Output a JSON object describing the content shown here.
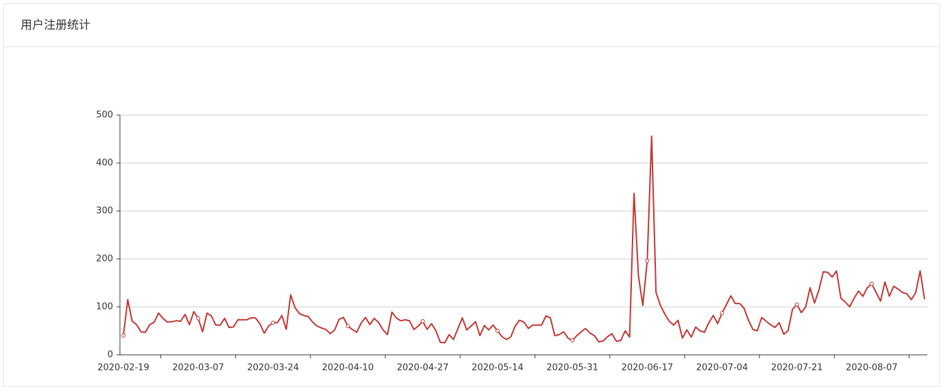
{
  "header": {
    "title": "用户注册统计"
  },
  "chart_data": {
    "type": "line",
    "color": "#c23531",
    "grid": true,
    "categories": [
      "2020-02-19",
      null,
      null,
      null,
      null,
      null,
      null,
      null,
      null,
      null,
      null,
      null,
      null,
      null,
      null,
      null,
      null,
      "2020-03-07",
      null,
      null,
      null,
      null,
      null,
      null,
      null,
      null,
      null,
      null,
      null,
      null,
      null,
      null,
      null,
      null,
      "2020-03-24",
      null,
      null,
      null,
      null,
      null,
      null,
      null,
      null,
      null,
      null,
      null,
      null,
      null,
      null,
      null,
      null,
      "2020-04-10",
      null,
      null,
      null,
      null,
      null,
      null,
      null,
      null,
      null,
      null,
      null,
      null,
      null,
      null,
      null,
      null,
      "2020-04-27",
      null,
      null,
      null,
      null,
      null,
      null,
      null,
      null,
      null,
      null,
      null,
      null,
      null,
      null,
      null,
      null,
      "2020-05-14",
      null,
      null,
      null,
      null,
      null,
      null,
      null,
      null,
      null,
      null,
      null,
      null,
      null,
      null,
      null,
      null,
      "2020-05-31",
      null,
      null,
      null,
      null,
      null,
      null,
      null,
      null,
      null,
      null,
      null,
      null,
      null,
      null,
      null,
      null,
      "2020-06-17",
      null,
      null,
      null,
      null,
      null,
      null,
      null,
      null,
      null,
      null,
      null,
      null,
      null,
      null,
      null,
      null,
      "2020-07-04",
      null,
      null,
      null,
      null,
      null,
      null,
      null,
      null,
      null,
      null,
      null,
      null,
      null,
      null,
      null,
      null,
      "2020-07-21",
      null,
      null,
      null,
      null,
      null,
      null,
      null,
      null,
      null,
      null,
      null,
      null,
      null,
      null,
      null,
      null,
      "2020-08-07",
      null,
      null,
      null,
      null,
      null,
      null,
      null,
      null,
      null,
      null,
      null,
      null
    ],
    "values": [
      40,
      115,
      70,
      63,
      48,
      47,
      63,
      68,
      87,
      76,
      68,
      69,
      71,
      70,
      84,
      63,
      90,
      76,
      48,
      87,
      81,
      62,
      62,
      76,
      57,
      58,
      73,
      73,
      73,
      77,
      77,
      65,
      45,
      60,
      67,
      67,
      82,
      53,
      125,
      98,
      86,
      82,
      80,
      68,
      60,
      56,
      53,
      44,
      52,
      74,
      78,
      60,
      53,
      47,
      66,
      78,
      63,
      76,
      67,
      52,
      42,
      89,
      77,
      71,
      73,
      71,
      53,
      60,
      70,
      53,
      65,
      50,
      26,
      25,
      42,
      32,
      55,
      77,
      52,
      60,
      69,
      40,
      61,
      52,
      62,
      50,
      38,
      32,
      37,
      60,
      72,
      68,
      55,
      62,
      62,
      62,
      81,
      77,
      40,
      42,
      48,
      35,
      30,
      40,
      48,
      55,
      45,
      40,
      27,
      29,
      38,
      44,
      28,
      30,
      50,
      37,
      337,
      165,
      103,
      196,
      456,
      130,
      103,
      85,
      70,
      62,
      72,
      35,
      52,
      37,
      58,
      50,
      47,
      67,
      82,
      65,
      87,
      105,
      123,
      107,
      107,
      97,
      72,
      53,
      50,
      78,
      70,
      63,
      57,
      67,
      43,
      50,
      95,
      105,
      88,
      100,
      140,
      108,
      135,
      173,
      172,
      162,
      175,
      118,
      110,
      100,
      118,
      133,
      122,
      140,
      148,
      130,
      112,
      152,
      122,
      143,
      137,
      130,
      127,
      115,
      130,
      175,
      116
    ],
    "ylim": [
      0,
      500
    ],
    "yticks": [
      0,
      100,
      200,
      300,
      400,
      500
    ]
  }
}
